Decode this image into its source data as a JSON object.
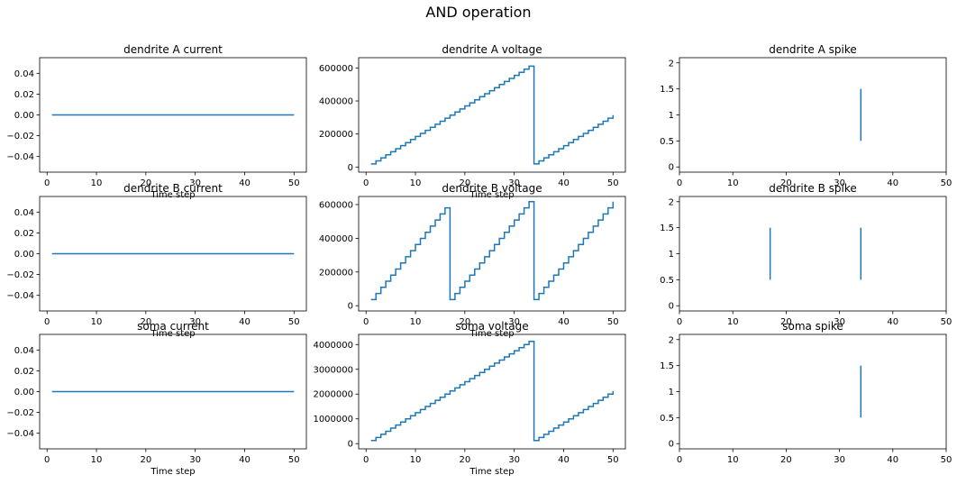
{
  "figure": {
    "title": "AND operation"
  },
  "colors": {
    "line": "#1f77b4",
    "axes": "#000000",
    "background": "#ffffff"
  },
  "chart_data": [
    {
      "id": "dendrite-a-current",
      "type": "line",
      "title": "dendrite A current",
      "xlabel": "Time step",
      "ylabel": "",
      "xlim": [
        -1.5,
        52.5
      ],
      "ylim": [
        -0.055,
        0.055
      ],
      "xticks": [
        0,
        10,
        20,
        30,
        40,
        50
      ],
      "yticks": [
        -0.04,
        -0.02,
        0.0,
        0.02,
        0.04
      ],
      "ytick_labels": [
        "−0.04",
        "−0.02",
        "0.00",
        "0.02",
        "0.04"
      ],
      "series": [
        {
          "x": [
            1,
            50
          ],
          "y": [
            0,
            0
          ]
        }
      ]
    },
    {
      "id": "dendrite-a-voltage",
      "type": "line",
      "step": true,
      "title": "dendrite A voltage",
      "xlabel": "Time step",
      "ylabel": "",
      "xlim": [
        -1.5,
        52.5
      ],
      "ylim": [
        -31000,
        662000
      ],
      "xticks": [
        0,
        10,
        20,
        30,
        40,
        50
      ],
      "yticks": [
        0,
        200000,
        400000,
        600000
      ],
      "series": [
        {
          "x": [
            1,
            50
          ],
          "y": [
            20000,
            300000
          ]
        }
      ],
      "sawtooth": {
        "start": 1,
        "end": 50,
        "step": 18500,
        "resets": [
          34
        ]
      }
    },
    {
      "id": "dendrite-a-spike",
      "type": "scatter",
      "title": "dendrite A spike",
      "xlabel": "",
      "ylabel": "",
      "xlim": [
        0,
        50
      ],
      "ylim": [
        -0.1,
        2.1
      ],
      "xticks": [
        0,
        10,
        20,
        30,
        40,
        50
      ],
      "yticks": [
        0.0,
        0.5,
        1.0,
        1.5,
        2.0
      ],
      "spikes": [
        34
      ],
      "spike_range": [
        0.5,
        1.5
      ]
    },
    {
      "id": "dendrite-b-current",
      "type": "line",
      "title": "dendrite B current",
      "xlabel": "Time step",
      "ylabel": "",
      "xlim": [
        -1.5,
        52.5
      ],
      "ylim": [
        -0.055,
        0.055
      ],
      "xticks": [
        0,
        10,
        20,
        30,
        40,
        50
      ],
      "yticks": [
        -0.04,
        -0.02,
        0.0,
        0.02,
        0.04
      ],
      "ytick_labels": [
        "−0.04",
        "−0.02",
        "0.00",
        "0.02",
        "0.04"
      ],
      "series": [
        {
          "x": [
            1,
            50
          ],
          "y": [
            0,
            0
          ]
        }
      ]
    },
    {
      "id": "dendrite-b-voltage",
      "type": "line",
      "step": true,
      "title": "dendrite B voltage",
      "xlabel": "Time step",
      "ylabel": "",
      "xlim": [
        -1.5,
        52.5
      ],
      "ylim": [
        -31000,
        648000
      ],
      "xticks": [
        0,
        10,
        20,
        30,
        40,
        50
      ],
      "yticks": [
        0,
        200000,
        400000,
        600000
      ],
      "series": [
        {
          "x": [
            1,
            50
          ],
          "y": [
            37000,
            617000
          ]
        }
      ],
      "sawtooth": {
        "start": 1,
        "end": 50,
        "step": 36300,
        "resets": [
          17,
          34
        ]
      }
    },
    {
      "id": "dendrite-b-spike",
      "type": "scatter",
      "title": "dendrite B spike",
      "xlabel": "",
      "ylabel": "",
      "xlim": [
        0,
        50
      ],
      "ylim": [
        -0.1,
        2.1
      ],
      "xticks": [
        0,
        10,
        20,
        30,
        40,
        50
      ],
      "yticks": [
        0.0,
        0.5,
        1.0,
        1.5,
        2.0
      ],
      "spikes": [
        17,
        34
      ],
      "spike_range": [
        0.5,
        1.5
      ]
    },
    {
      "id": "soma-current",
      "type": "line",
      "title": "soma current",
      "xlabel": "Time step",
      "ylabel": "",
      "xlim": [
        -1.5,
        52.5
      ],
      "ylim": [
        -0.055,
        0.055
      ],
      "xticks": [
        0,
        10,
        20,
        30,
        40,
        50
      ],
      "yticks": [
        -0.04,
        -0.02,
        0.0,
        0.02,
        0.04
      ],
      "ytick_labels": [
        "−0.04",
        "−0.02",
        "0.00",
        "0.02",
        "0.04"
      ],
      "series": [
        {
          "x": [
            1,
            50
          ],
          "y": [
            0,
            0
          ]
        }
      ]
    },
    {
      "id": "soma-voltage",
      "type": "line",
      "step": true,
      "title": "soma voltage",
      "xlabel": "Time step",
      "ylabel": "",
      "xlim": [
        -1.5,
        52.5
      ],
      "ylim": [
        -210000,
        4410000
      ],
      "xticks": [
        0,
        10,
        20,
        30,
        40,
        50
      ],
      "yticks": [
        0,
        1000000,
        2000000,
        3000000,
        4000000
      ],
      "series": [
        {
          "x": [
            1,
            50
          ],
          "y": [
            125000,
            2000000
          ]
        }
      ],
      "sawtooth": {
        "start": 1,
        "end": 50,
        "step": 125000,
        "resets": [
          34
        ]
      }
    },
    {
      "id": "soma-spike",
      "type": "scatter",
      "title": "soma spike",
      "xlabel": "",
      "ylabel": "",
      "xlim": [
        0,
        50
      ],
      "ylim": [
        -0.1,
        2.1
      ],
      "xticks": [
        0,
        10,
        20,
        30,
        40,
        50
      ],
      "yticks": [
        0.0,
        0.5,
        1.0,
        1.5,
        2.0
      ],
      "spikes": [
        34
      ],
      "spike_range": [
        0.5,
        1.5
      ]
    }
  ]
}
